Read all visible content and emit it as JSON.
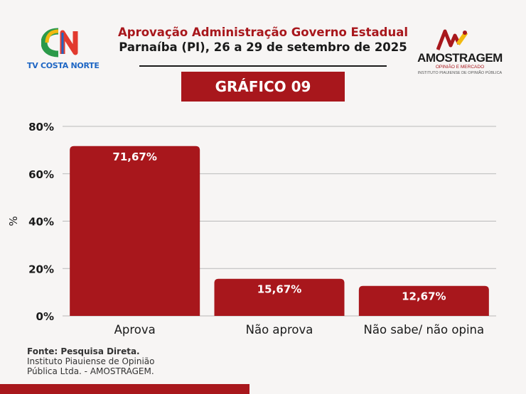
{
  "header": {
    "title": "Aprovação Administração Governo Estadual",
    "subtitle": "Parnaíba (PI), 26 a 29 de setembro de 2025",
    "left_logo": {
      "mark": "CN",
      "text": "TV COSTA NORTE"
    },
    "right_logo": {
      "brand": "AMOSTRAGEM",
      "tagline": "OPINIÃO E MERCADO",
      "institute": "INSTITUTO PIAUIENSE DE OPINIÃO PÚBLICA"
    }
  },
  "badge": {
    "label": "GRÁFICO 09"
  },
  "colors": {
    "accent": "#a8171c",
    "grid": "#b9b9b9",
    "text": "#1a1a1a"
  },
  "chart_data": {
    "type": "bar",
    "categories": [
      "Aprova",
      "Não aprova",
      "Não sabe/ não opina"
    ],
    "values": [
      71.67,
      15.67,
      12.67
    ],
    "data_labels": [
      "71,67%",
      "15,67%",
      "12,67%"
    ],
    "ylabel": "%",
    "xlabel": "",
    "ylim": [
      0,
      80
    ],
    "yticks": [
      0,
      20,
      40,
      60,
      80
    ],
    "ytick_labels": [
      "0%",
      "20%",
      "40%",
      "60%",
      "80%"
    ],
    "grid": true,
    "bar_color": "#a8171c"
  },
  "footer": {
    "source": "Fonte: Pesquisa Direta.",
    "line2": "Instituto Piauiense de Opinião",
    "line3": "Pública Ltda. - AMOSTRAGEM."
  }
}
